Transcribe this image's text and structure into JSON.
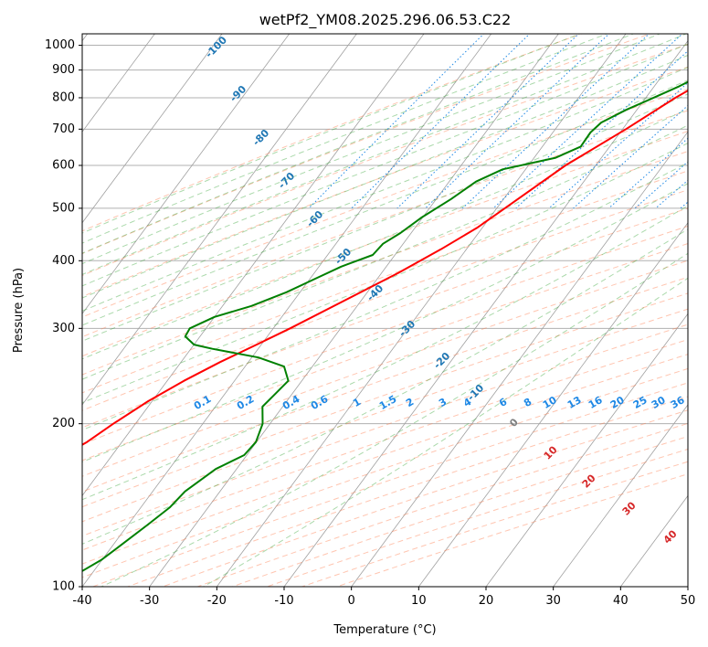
{
  "chart_data": {
    "type": "skew-t",
    "title": "wetPf2_YM08.2025.296.06.53.C22",
    "xlabel": "Temperature (°C)",
    "ylabel": "Pressure (hPa)",
    "xlim": [
      -40,
      50
    ],
    "ylim": [
      1050,
      100
    ],
    "x_ticks": [
      "-40",
      "-30",
      "-20",
      "-10",
      "0",
      "10",
      "20",
      "30",
      "40",
      "50"
    ],
    "y_ticks": [
      {
        "p": 100,
        "label": "100"
      },
      {
        "p": 200,
        "label": "200"
      },
      {
        "p": 300,
        "label": "300"
      },
      {
        "p": 400,
        "label": "400"
      },
      {
        "p": 500,
        "label": "500"
      },
      {
        "p": 600,
        "label": "600"
      },
      {
        "p": 700,
        "label": "700"
      },
      {
        "p": 800,
        "label": "800"
      },
      {
        "p": 900,
        "label": "900"
      },
      {
        "p": 1000,
        "label": "1000"
      }
    ],
    "isotherm_labels": [
      "-100",
      "-90",
      "-80",
      "-70",
      "-60",
      "-50",
      "-40",
      "-30",
      "-20",
      "-10"
    ],
    "mixing_ratio_labels": [
      "0.1",
      "0.2",
      "0.4",
      "0.6",
      "1",
      "1.5",
      "2",
      "3",
      "4",
      "6",
      "8",
      "10",
      "13",
      "16",
      "20",
      "25",
      "30",
      "36"
    ],
    "moist_adiabat_labels": [
      "0",
      "10",
      "20",
      "30",
      "40"
    ],
    "colors": {
      "temperature": "#ff0000",
      "dewpoint": "#008000",
      "isotherm_label": "#1f77b4",
      "mixing_ratio": "#1e88e5",
      "dry_adiabat": "#ff7f50",
      "moist_adiabat": "#2ca02c",
      "moist_label_warm": "#d62728",
      "moist_label_zero": "#7f7f7f",
      "grid": "#b0b0b0"
    },
    "series": [
      {
        "name": "Temperature",
        "points": [
          {
            "p": 985,
            "t": 3.2
          },
          {
            "p": 950,
            "t": 0.8
          },
          {
            "p": 910,
            "t": -1.6
          },
          {
            "p": 850,
            "t": -3.5
          },
          {
            "p": 800,
            "t": -5.6
          },
          {
            "p": 700,
            "t": -9.5
          },
          {
            "p": 600,
            "t": -14.5
          },
          {
            "p": 500,
            "t": -18.8
          },
          {
            "p": 460,
            "t": -20.8
          },
          {
            "p": 420,
            "t": -23.8
          },
          {
            "p": 380,
            "t": -27.5
          },
          {
            "p": 340,
            "t": -32.2
          },
          {
            "p": 300,
            "t": -37.5
          },
          {
            "p": 280,
            "t": -40.7
          },
          {
            "p": 260,
            "t": -44.2
          },
          {
            "p": 240,
            "t": -47.5
          },
          {
            "p": 220,
            "t": -50.6
          },
          {
            "p": 200,
            "t": -53.3
          },
          {
            "p": 185,
            "t": -55.2
          },
          {
            "p": 170,
            "t": -58.2
          },
          {
            "p": 160,
            "t": -60.8
          },
          {
            "p": 150,
            "t": -62.9
          },
          {
            "p": 140,
            "t": -65.0
          },
          {
            "p": 130,
            "t": -66.8
          },
          {
            "p": 120,
            "t": -68.0
          },
          {
            "p": 110,
            "t": -69.6
          },
          {
            "p": 100,
            "t": -71.6
          }
        ]
      },
      {
        "name": "Dewpoint",
        "points": [
          {
            "p": 985,
            "t": -4.1
          },
          {
            "p": 950,
            "t": -4.1
          },
          {
            "p": 920,
            "t": -3.5
          },
          {
            "p": 900,
            "t": -4.3
          },
          {
            "p": 870,
            "t": -4.8
          },
          {
            "p": 840,
            "t": -6.3
          },
          {
            "p": 790,
            "t": -9.5
          },
          {
            "p": 760,
            "t": -11.6
          },
          {
            "p": 720,
            "t": -13.9
          },
          {
            "p": 690,
            "t": -14.4
          },
          {
            "p": 650,
            "t": -14.3
          },
          {
            "p": 620,
            "t": -16.8
          },
          {
            "p": 590,
            "t": -23.4
          },
          {
            "p": 560,
            "t": -26.0
          },
          {
            "p": 520,
            "t": -27.8
          },
          {
            "p": 480,
            "t": -30.2
          },
          {
            "p": 450,
            "t": -31.6
          },
          {
            "p": 430,
            "t": -33.0
          },
          {
            "p": 410,
            "t": -33.3
          },
          {
            "p": 390,
            "t": -36.7
          },
          {
            "p": 370,
            "t": -39.3
          },
          {
            "p": 350,
            "t": -42.0
          },
          {
            "p": 330,
            "t": -45.7
          },
          {
            "p": 315,
            "t": -50.0
          },
          {
            "p": 300,
            "t": -52.4
          },
          {
            "p": 290,
            "t": -52.2
          },
          {
            "p": 280,
            "t": -50.0
          },
          {
            "p": 275,
            "t": -46.8
          },
          {
            "p": 265,
            "t": -39.0
          },
          {
            "p": 255,
            "t": -34.2
          },
          {
            "p": 240,
            "t": -32.0
          },
          {
            "p": 225,
            "t": -32.6
          },
          {
            "p": 215,
            "t": -33.0
          },
          {
            "p": 200,
            "t": -31.1
          },
          {
            "p": 185,
            "t": -30.1
          },
          {
            "p": 175,
            "t": -30.4
          },
          {
            "p": 165,
            "t": -33.1
          },
          {
            "p": 150,
            "t": -35.2
          },
          {
            "p": 140,
            "t": -35.7
          },
          {
            "p": 130,
            "t": -37.1
          },
          {
            "p": 120,
            "t": -38.7
          },
          {
            "p": 112,
            "t": -40.1
          },
          {
            "p": 106,
            "t": -42.0
          },
          {
            "p": 100,
            "t": -43.9
          }
        ]
      }
    ]
  }
}
